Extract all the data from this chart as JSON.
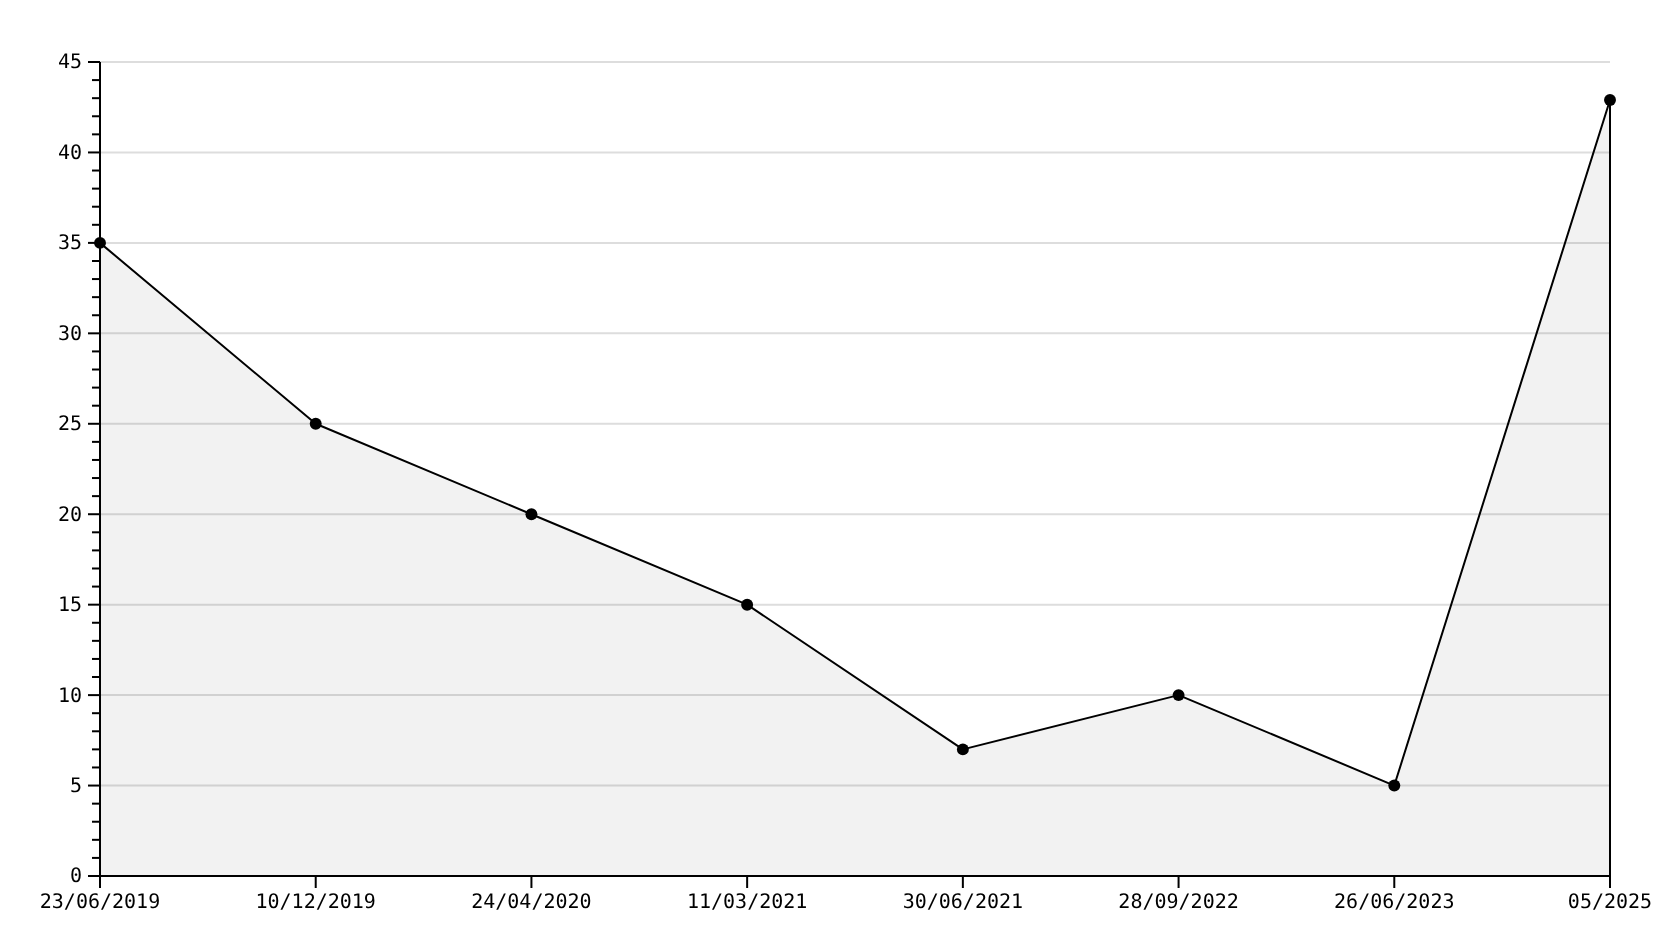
{
  "chart_data": {
    "type": "area",
    "categories": [
      "23/06/2019",
      "10/12/2019",
      "24/04/2020",
      "11/03/2021",
      "30/06/2021",
      "28/09/2022",
      "26/06/2023",
      "05/2025"
    ],
    "series": [
      {
        "color": "#000000",
        "values": [
          35,
          25,
          20,
          15,
          7,
          10,
          5,
          42.9
        ]
      }
    ],
    "ylim": [
      0,
      45
    ],
    "yticks": [
      0,
      {
        "value": 1,
        "label": null
      },
      {
        "value": 2,
        "label": null
      },
      {
        "value": 3,
        "label": null
      },
      {
        "value": 4,
        "label": null
      },
      5,
      {
        "value": 6,
        "label": null
      },
      {
        "value": 7,
        "label": null
      },
      {
        "value": 8,
        "label": null
      },
      {
        "value": 9,
        "label": null
      },
      10,
      {
        "value": 11,
        "label": null
      },
      {
        "value": 12,
        "label": null
      },
      {
        "value": 13,
        "label": null
      },
      {
        "value": 14,
        "label": null
      },
      15,
      {
        "value": 16,
        "label": null
      },
      {
        "value": 17,
        "label": null
      },
      {
        "value": 18,
        "label": null
      },
      {
        "value": 19,
        "label": null
      },
      20,
      {
        "value": 21,
        "label": null
      },
      {
        "value": 22,
        "label": null
      },
      {
        "value": 23,
        "label": null
      },
      {
        "value": 24,
        "label": null
      },
      25,
      {
        "value": 26,
        "label": null
      },
      {
        "value": 27,
        "label": null
      },
      {
        "value": 28,
        "label": null
      },
      {
        "value": 29,
        "label": null
      },
      30,
      {
        "value": 31,
        "label": null
      },
      {
        "value": 32,
        "label": null
      },
      {
        "value": 33,
        "label": null
      },
      {
        "value": 34,
        "label": null
      },
      35,
      {
        "value": 36,
        "label": null
      },
      {
        "value": 37,
        "label": null
      },
      {
        "value": 38,
        "label": null
      },
      {
        "value": 39,
        "label": null
      },
      40,
      {
        "value": 41,
        "label": null
      },
      {
        "value": 42,
        "label": null
      },
      {
        "value": 43,
        "label": null
      },
      {
        "value": 44,
        "label": null
      },
      45
    ],
    "grid": "y",
    "marker": "circle",
    "line_style": "solid"
  }
}
